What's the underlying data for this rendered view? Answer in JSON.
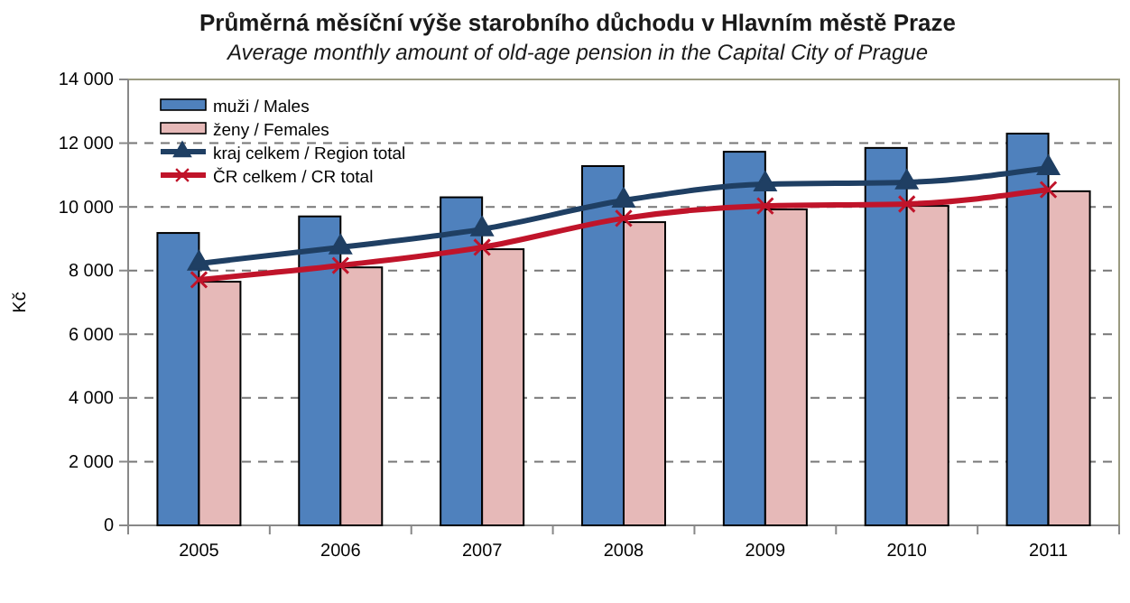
{
  "chart_data": {
    "type": "bar",
    "title": "Průměrná měsíční výše starobního důchodu v Hlavním městě Praze",
    "subtitle": "Average monthly amount of old-age pension in the Capital City of Prague",
    "ylabel": "Kč",
    "categories": [
      "2005",
      "2006",
      "2007",
      "2008",
      "2009",
      "2010",
      "2011"
    ],
    "series": [
      {
        "name": "muži / Males",
        "color": "#4f81bd",
        "values": [
          9180,
          9700,
          10300,
          11280,
          11730,
          11850,
          12300
        ]
      },
      {
        "name": "ženy / Females",
        "color": "#e6b9b8",
        "values": [
          7650,
          8100,
          8670,
          9520,
          9920,
          10030,
          10490
        ]
      },
      {
        "name": "kraj celkem / Region total",
        "type": "line",
        "color": "#1f3f63",
        "marker": "triangle",
        "values": [
          8220,
          8730,
          9300,
          10200,
          10710,
          10770,
          11220
        ]
      },
      {
        "name": "ČR celkem / CR total",
        "type": "line",
        "color": "#c0142a",
        "marker": "cross",
        "values": [
          7710,
          8160,
          8730,
          9640,
          10030,
          10090,
          10540
        ]
      }
    ],
    "ylim": [
      0,
      14000
    ],
    "yticks": [
      {
        "value": 0,
        "label": "0"
      },
      {
        "value": 2000,
        "label": "2 000"
      },
      {
        "value": 4000,
        "label": "4 000"
      },
      {
        "value": 6000,
        "label": "6 000"
      },
      {
        "value": 8000,
        "label": "8 000"
      },
      {
        "value": 10000,
        "label": "10 000"
      },
      {
        "value": 12000,
        "label": "12 000"
      },
      {
        "value": 14000,
        "label": "14 000"
      }
    ],
    "grid": "y",
    "legend": "top left"
  }
}
